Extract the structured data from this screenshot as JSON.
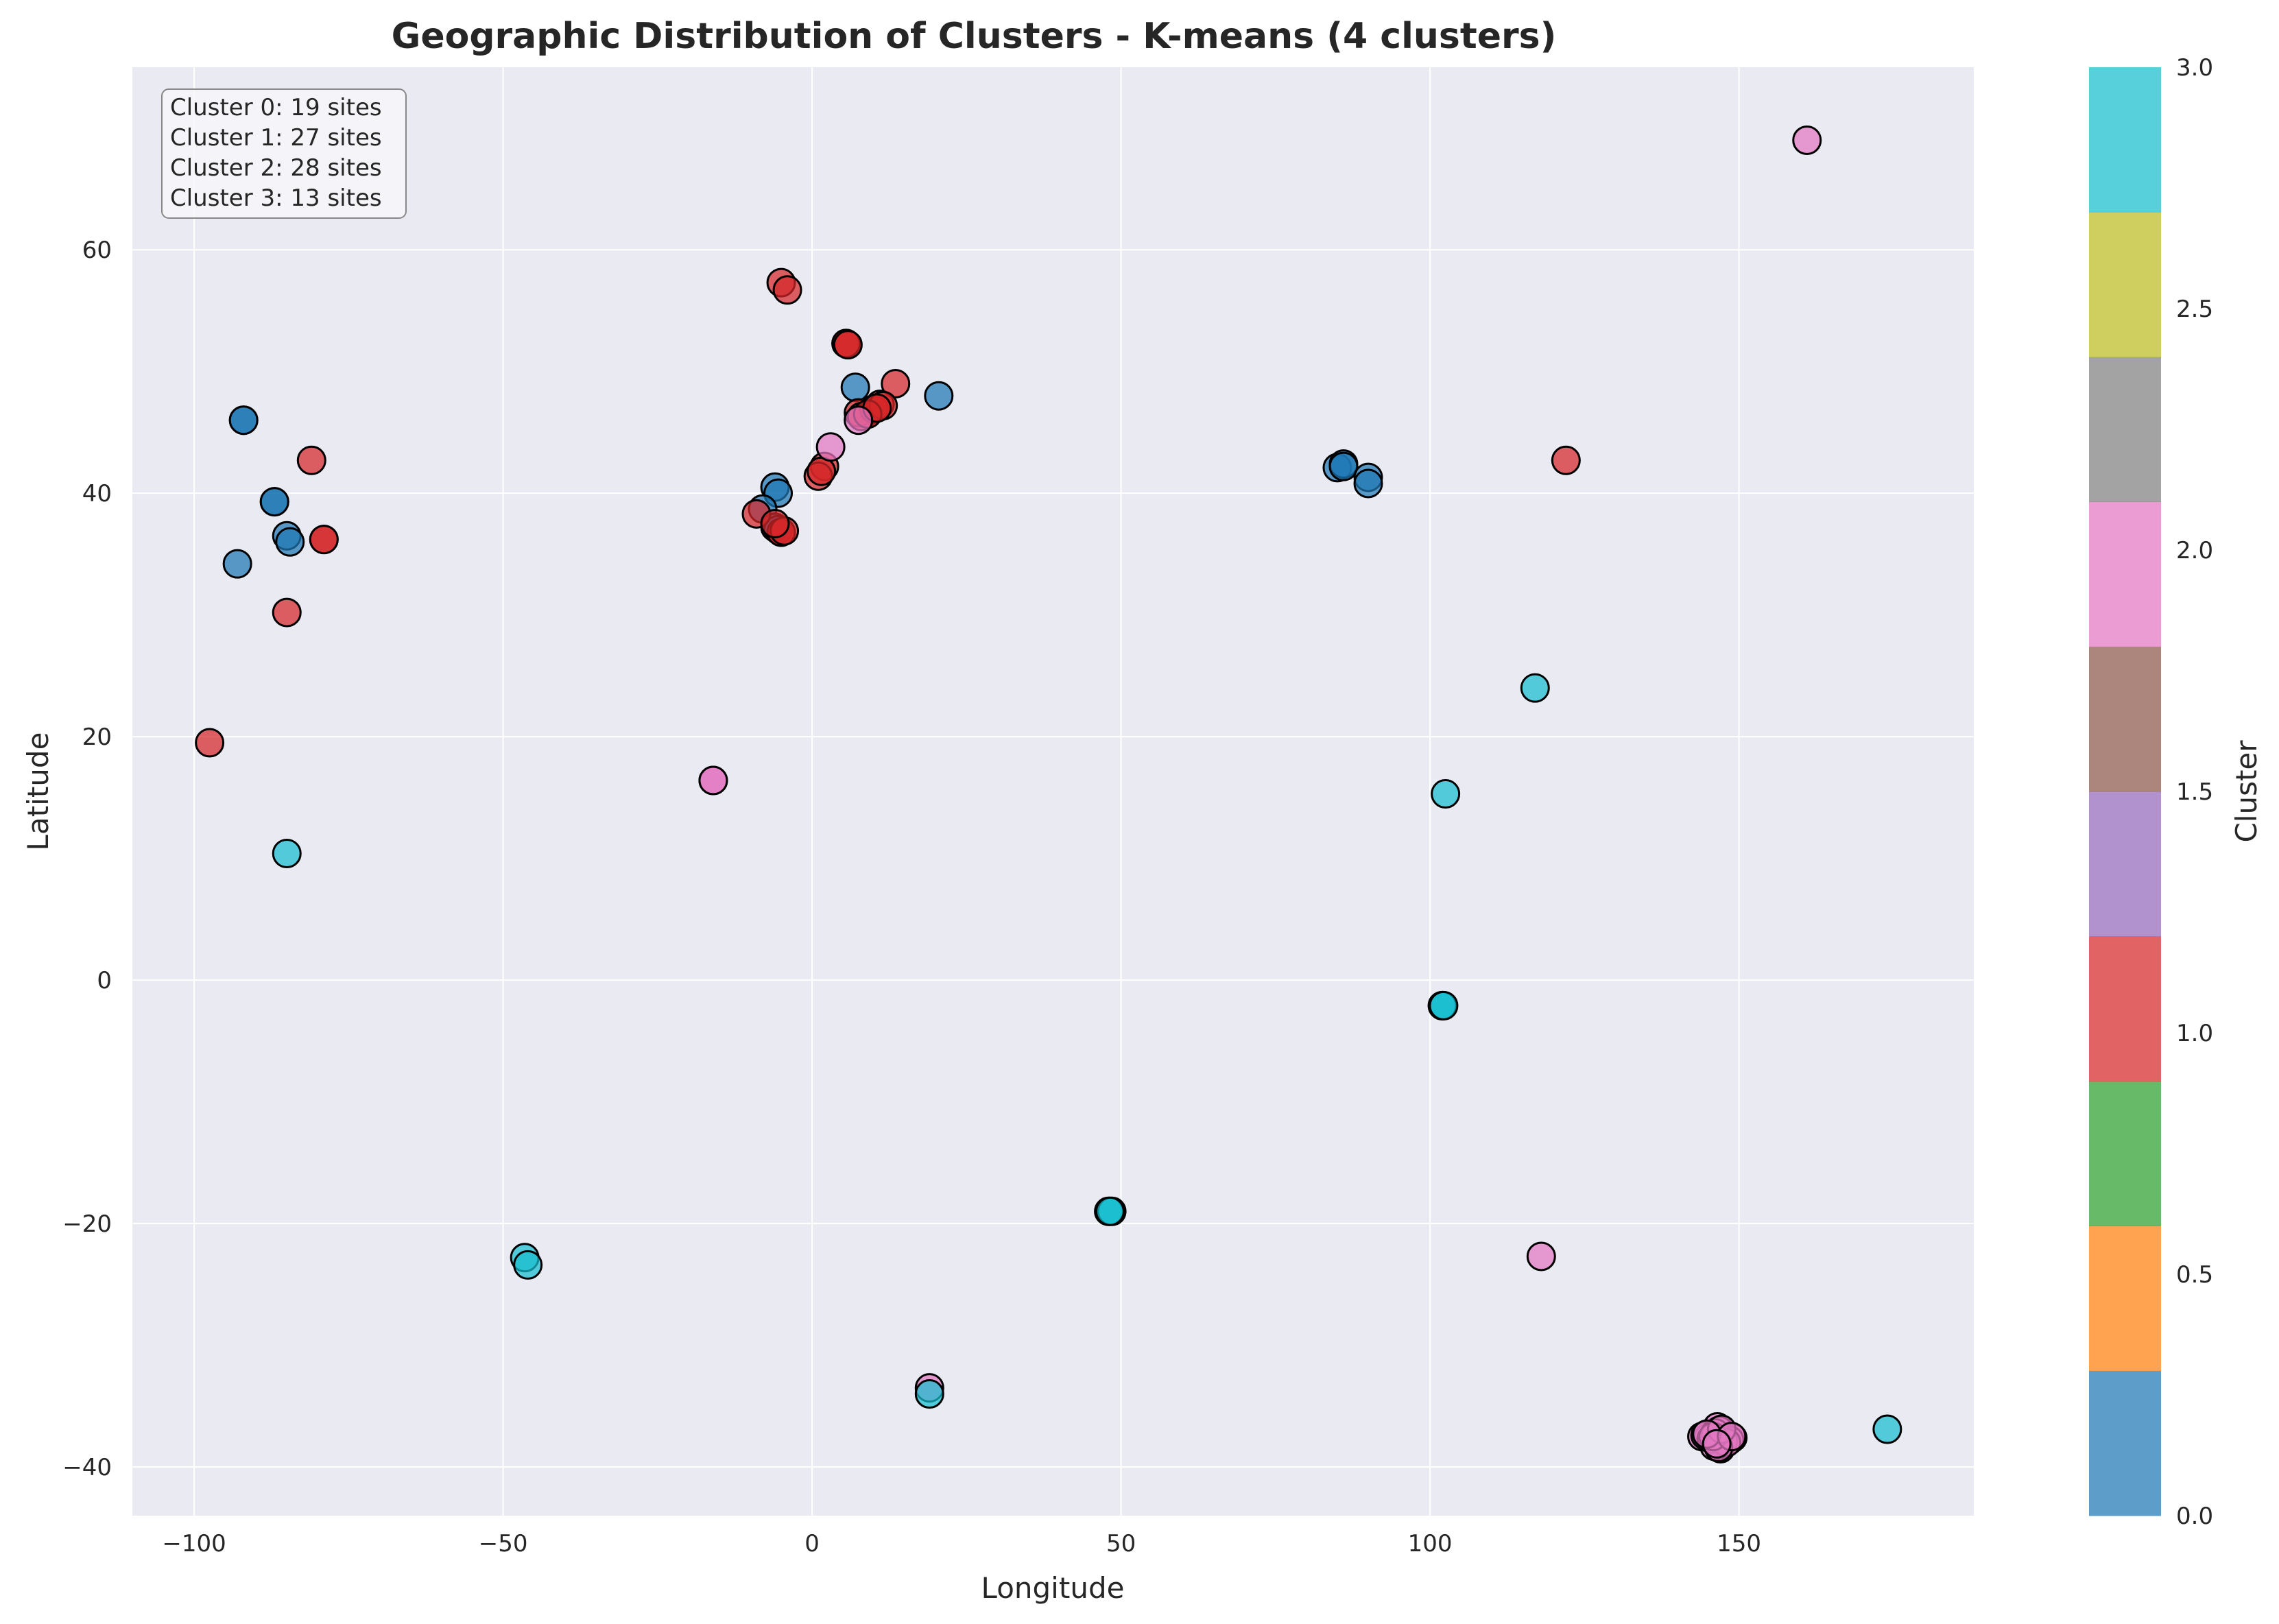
{
  "chart_data": {
    "type": "scatter",
    "title": "Geographic Distribution of Clusters - K-means (4 clusters)",
    "xlabel": "Longitude",
    "ylabel": "Latitude",
    "xlim": [
      -110,
      188
    ],
    "ylim": [
      -44,
      75
    ],
    "xticks": [
      -100,
      -50,
      0,
      50,
      100,
      150
    ],
    "yticks": [
      -40,
      -20,
      0,
      20,
      40,
      60
    ],
    "xtick_labels": [
      "−100",
      "−50",
      "0",
      "50",
      "100",
      "150"
    ],
    "ytick_labels": [
      "−40",
      "−20",
      "0",
      "20",
      "40",
      "60"
    ],
    "grid": true,
    "background_color": "#eaeaf2",
    "legend_location": "top-left",
    "annotation": [
      "Cluster 0: 19 sites",
      "Cluster 1: 27 sites",
      "Cluster 2: 28 sites",
      "Cluster 3: 13 sites"
    ],
    "colorbar": {
      "label": "Cluster",
      "range": [
        0,
        3
      ],
      "ticks": [
        0.0,
        0.5,
        1.0,
        1.5,
        2.0,
        2.5,
        3.0
      ],
      "tick_labels": [
        "0.0",
        "0.5",
        "1.0",
        "1.5",
        "2.0",
        "2.5",
        "3.0"
      ],
      "colors": [
        "#1f77b4",
        "#ff7f0e",
        "#2ca02c",
        "#d62728",
        "#9467bd",
        "#8c564b",
        "#e377c2",
        "#7f7f7f",
        "#bcbd22",
        "#17becf"
      ]
    },
    "cluster_colors": {
      "0": "#1f77b4",
      "1": "#d62728",
      "2": "#e377c2",
      "3": "#17becf"
    },
    "series": [
      {
        "cluster": 0,
        "points": [
          [
            -92,
            46
          ],
          [
            -92,
            46
          ],
          [
            -87,
            39.3
          ],
          [
            -87,
            39.3
          ],
          [
            -85,
            36.5
          ],
          [
            -84.5,
            36
          ],
          [
            -93,
            34.2
          ],
          [
            -6,
            40.5
          ],
          [
            -5.5,
            40
          ],
          [
            -8,
            38.7
          ],
          [
            7,
            48.7
          ],
          [
            20.5,
            48
          ],
          [
            85,
            42.1
          ],
          [
            86,
            42.4
          ],
          [
            86,
            42.2
          ],
          [
            90,
            41.3
          ],
          [
            90,
            40.8
          ],
          [
            -6,
            37.2
          ],
          [
            -5.5,
            37
          ]
        ]
      },
      {
        "cluster": 1,
        "points": [
          [
            -97.5,
            19.5
          ],
          [
            -85,
            30.2
          ],
          [
            -81,
            42.7
          ],
          [
            -79,
            36.2
          ],
          [
            -79,
            36.2
          ],
          [
            -5,
            57.3
          ],
          [
            -4,
            56.7
          ],
          [
            5.5,
            52.3
          ],
          [
            5.5,
            52.3
          ],
          [
            13.5,
            49
          ],
          [
            7.5,
            46.6
          ],
          [
            8,
            46.3
          ],
          [
            10,
            46.9
          ],
          [
            11,
            47.3
          ],
          [
            11.5,
            47.2
          ],
          [
            2,
            42.2
          ],
          [
            1,
            41.4
          ],
          [
            -9,
            38.3
          ],
          [
            -5,
            36.8
          ],
          [
            -5,
            36.8
          ],
          [
            122,
            42.7
          ],
          [
            -4.5,
            36.9
          ],
          [
            -6,
            37.5
          ],
          [
            9,
            46.5
          ],
          [
            10.5,
            47
          ],
          [
            5.8,
            52.2
          ],
          [
            1.5,
            41.8
          ]
        ]
      },
      {
        "cluster": 2,
        "points": [
          [
            161,
            69
          ],
          [
            3,
            43.8
          ],
          [
            7.5,
            46
          ],
          [
            -16,
            16.4
          ],
          [
            -16,
            16.4
          ],
          [
            118,
            -22.7
          ],
          [
            19,
            -33.5
          ],
          [
            144,
            -37.5
          ],
          [
            146,
            -37.8
          ],
          [
            147,
            -38.5
          ],
          [
            149,
            -37.6
          ],
          [
            146.5,
            -36.7
          ],
          [
            145,
            -37.6
          ],
          [
            147,
            -38.2
          ],
          [
            146.8,
            -37
          ],
          [
            148.5,
            -37.8
          ],
          [
            144.5,
            -37.4
          ],
          [
            146,
            -38.3
          ],
          [
            147.5,
            -37.9
          ],
          [
            145.5,
            -37.7
          ],
          [
            146.2,
            -37.2
          ],
          [
            148,
            -38
          ],
          [
            146.7,
            -38.4
          ],
          [
            145.8,
            -37.5
          ],
          [
            147.2,
            -36.9
          ],
          [
            144.8,
            -37.3
          ],
          [
            148.8,
            -37.5
          ],
          [
            146.4,
            -38.1
          ]
        ]
      },
      {
        "cluster": 3,
        "points": [
          [
            -85,
            10.4
          ],
          [
            117,
            24
          ],
          [
            102.5,
            15.3
          ],
          [
            102,
            -2.1
          ],
          [
            102,
            -2.1
          ],
          [
            48,
            -19
          ],
          [
            48.5,
            -19
          ],
          [
            -46.5,
            -22.8
          ],
          [
            -46,
            -23.4
          ],
          [
            19,
            -34
          ],
          [
            174,
            -36.9
          ],
          [
            48.2,
            -19
          ],
          [
            102.2,
            -2.1
          ]
        ]
      }
    ]
  }
}
